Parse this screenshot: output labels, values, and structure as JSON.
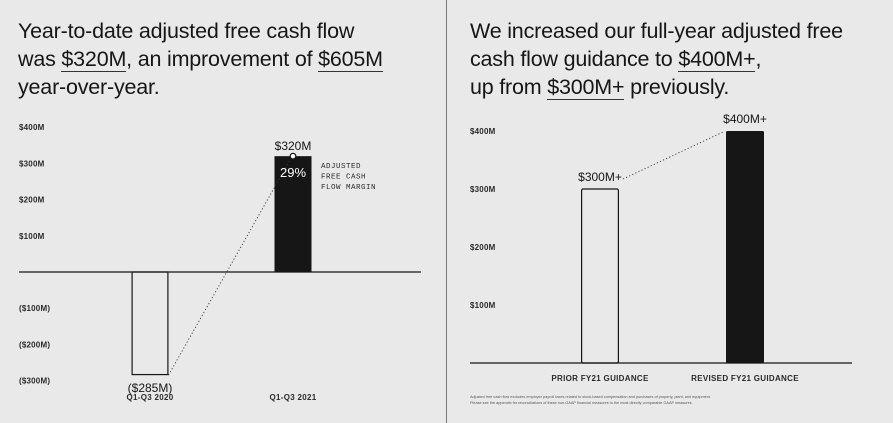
{
  "chart_data": [
    {
      "type": "bar",
      "title_parts": [
        {
          "text": "Year-to-date adjusted free cash flow",
          "highlight": false
        },
        {
          "br": true
        },
        {
          "text": "was ",
          "highlight": false
        },
        {
          "text": "$320M",
          "highlight": true
        },
        {
          "text": ", an improvement of ",
          "highlight": false
        },
        {
          "text": "$605M",
          "highlight": true
        },
        {
          "br": true
        },
        {
          "text": "year-over-year.",
          "highlight": false
        }
      ],
      "categories": [
        "Q1-Q3 2020",
        "Q1-Q3 2021"
      ],
      "values": [
        -285,
        320
      ],
      "value_labels": [
        "($285M)",
        "$320M"
      ],
      "bar_styles": [
        "outline",
        "filled"
      ],
      "y_ticks": [
        {
          "value": 400,
          "label": "$400M"
        },
        {
          "value": 300,
          "label": "$300M"
        },
        {
          "value": 200,
          "label": "$200M"
        },
        {
          "value": 100,
          "label": "$100M"
        },
        {
          "value": -100,
          "label": "($100M)"
        },
        {
          "value": -200,
          "label": "($200M)"
        },
        {
          "value": -300,
          "label": "($300M)"
        }
      ],
      "ylim": [
        -300,
        400
      ],
      "inner_label": "29%",
      "annotation": [
        "ADJUSTED",
        "FREE CASH",
        "FLOW MARGIN"
      ],
      "connector": "dotted"
    },
    {
      "type": "bar",
      "title_parts": [
        {
          "text": "We increased our full-year adjusted free",
          "highlight": false
        },
        {
          "br": true
        },
        {
          "text": "cash flow guidance to ",
          "highlight": false
        },
        {
          "text": "$400M+",
          "highlight": true
        },
        {
          "text": ",",
          "highlight": false
        },
        {
          "br": true
        },
        {
          "text": "up from ",
          "highlight": false
        },
        {
          "text": "$300M+",
          "highlight": true
        },
        {
          "text": " previously.",
          "highlight": false
        }
      ],
      "categories": [
        "PRIOR FY21 GUIDANCE",
        "REVISED FY21 GUIDANCE"
      ],
      "values": [
        300,
        400
      ],
      "value_labels": [
        "$300M+",
        "$400M+"
      ],
      "bar_styles": [
        "outline",
        "filled"
      ],
      "y_ticks": [
        {
          "value": 400,
          "label": "$400M"
        },
        {
          "value": 300,
          "label": "$300M"
        },
        {
          "value": 200,
          "label": "$200M"
        },
        {
          "value": 100,
          "label": "$100M"
        }
      ],
      "ylim": [
        0,
        400
      ],
      "connector": "dotted",
      "footnote": [
        "Adjusted free cash flow excludes employer payroll taxes related to stock-based compensation and purchases of property, plant, and equipment.",
        "Please see the appendix for reconciliations of these non-GAAP financial measures to the most directly comparable GAAP measures."
      ]
    }
  ]
}
